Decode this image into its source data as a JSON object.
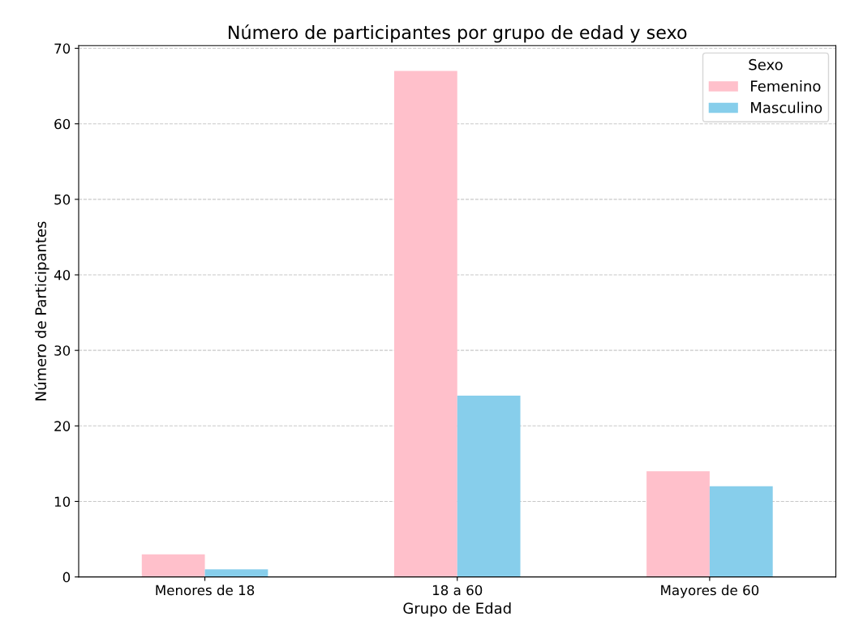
{
  "chart_data": {
    "type": "bar",
    "title": "Número de participantes por grupo de edad y sexo",
    "xlabel": "Grupo de Edad",
    "ylabel": "Número de Participantes",
    "legend_title": "Sexo",
    "categories": [
      "Menores de 18",
      "18 a 60",
      "Mayores de 60"
    ],
    "series": [
      {
        "name": "Femenino",
        "color": "#ffc0cb",
        "values": [
          3,
          67,
          14
        ]
      },
      {
        "name": "Masculino",
        "color": "#87ceeb",
        "values": [
          1,
          24,
          12
        ]
      }
    ],
    "ylim": [
      0,
      70.35
    ],
    "yticks": [
      0,
      10,
      20,
      30,
      40,
      50,
      60,
      70
    ],
    "grid": "y",
    "legend": "top right"
  }
}
